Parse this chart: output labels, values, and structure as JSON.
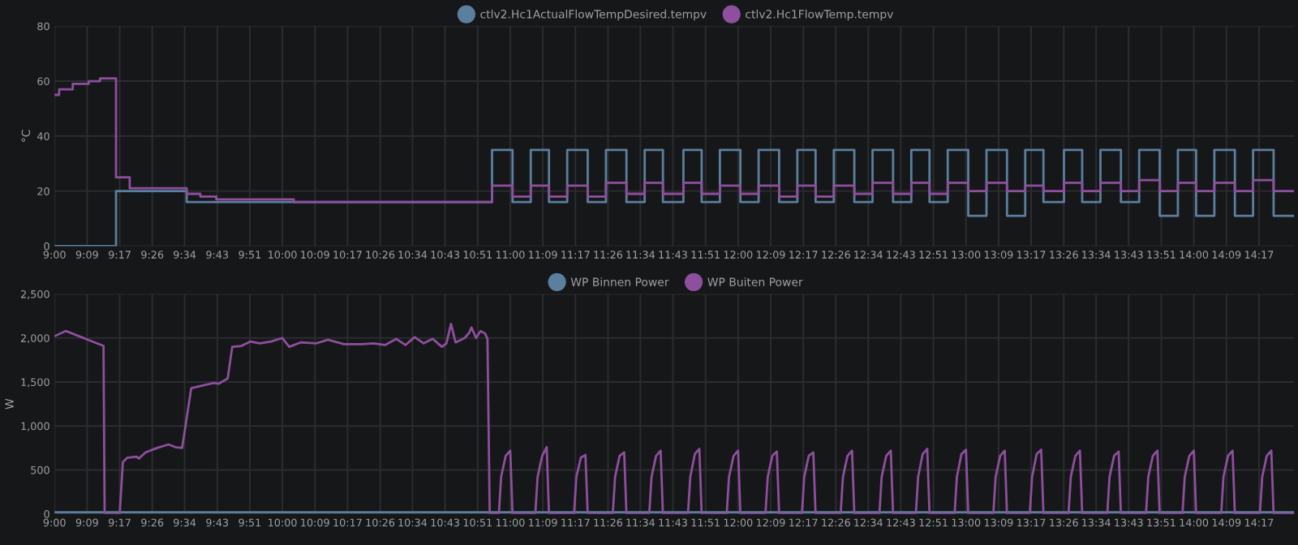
{
  "chart_data": [
    {
      "type": "step",
      "ylabel": "°C",
      "ylim": [
        0,
        80
      ],
      "yticks": [
        0,
        20,
        40,
        60,
        80
      ],
      "xlim": [
        9,
        14.44
      ],
      "xticks": [
        {
          "value": 9,
          "label": "9:00"
        },
        {
          "value": 9.143,
          "label": "9:09"
        },
        {
          "value": 9.286,
          "label": "9:17"
        },
        {
          "value": 9.429,
          "label": "9:26"
        },
        {
          "value": 9.571,
          "label": "9:34"
        },
        {
          "value": 9.714,
          "label": "9:43"
        },
        {
          "value": 9.857,
          "label": "9:51"
        },
        {
          "value": 10,
          "label": "10:00"
        },
        {
          "value": 10.143,
          "label": "10:09"
        },
        {
          "value": 10.286,
          "label": "10:17"
        },
        {
          "value": 10.429,
          "label": "10:26"
        },
        {
          "value": 10.571,
          "label": "10:34"
        },
        {
          "value": 10.714,
          "label": "10:43"
        },
        {
          "value": 10.857,
          "label": "10:51"
        },
        {
          "value": 11,
          "label": "11:00"
        },
        {
          "value": 11.143,
          "label": "11:09"
        },
        {
          "value": 11.286,
          "label": "11:17"
        },
        {
          "value": 11.429,
          "label": "11:26"
        },
        {
          "value": 11.571,
          "label": "11:34"
        },
        {
          "value": 11.714,
          "label": "11:43"
        },
        {
          "value": 11.857,
          "label": "11:51"
        },
        {
          "value": 12,
          "label": "12:00"
        },
        {
          "value": 12.143,
          "label": "12:09"
        },
        {
          "value": 12.286,
          "label": "12:17"
        },
        {
          "value": 12.429,
          "label": "12:26"
        },
        {
          "value": 12.571,
          "label": "12:34"
        },
        {
          "value": 12.714,
          "label": "12:43"
        },
        {
          "value": 12.857,
          "label": "12:51"
        },
        {
          "value": 13,
          "label": "13:00"
        },
        {
          "value": 13.143,
          "label": "13:09"
        },
        {
          "value": 13.286,
          "label": "13:17"
        },
        {
          "value": 13.429,
          "label": "13:26"
        },
        {
          "value": 13.571,
          "label": "13:34"
        },
        {
          "value": 13.714,
          "label": "13:43"
        },
        {
          "value": 13.857,
          "label": "13:51"
        },
        {
          "value": 14,
          "label": "14:00"
        },
        {
          "value": 14.143,
          "label": "14:09"
        },
        {
          "value": 14.286,
          "label": "14:17"
        }
      ],
      "grid": true,
      "legend": "top",
      "series": [
        {
          "name": "ctlv2.Hc1ActualFlowTempDesired.tempv",
          "color": "#5b7f9f",
          "x": [
            9.0,
            9.27,
            9.58,
            10.92,
            11.01,
            11.09,
            11.17,
            11.25,
            11.34,
            11.42,
            11.51,
            11.59,
            11.67,
            11.76,
            11.84,
            11.92,
            12.01,
            12.09,
            12.18,
            12.26,
            12.34,
            12.42,
            12.51,
            12.59,
            12.68,
            12.76,
            12.84,
            12.92,
            13.01,
            13.09,
            13.18,
            13.26,
            13.34,
            13.43,
            13.51,
            13.59,
            13.68,
            13.76,
            13.85,
            13.93,
            14.01,
            14.09,
            14.18,
            14.26,
            14.35,
            14.44
          ],
          "values": [
            0,
            20,
            16,
            35,
            16,
            35,
            16,
            35,
            16,
            35,
            16,
            35,
            16,
            35,
            16,
            35,
            16,
            35,
            16,
            35,
            16,
            35,
            16,
            35,
            16,
            35,
            16,
            35,
            11,
            35,
            11,
            35,
            16,
            35,
            16,
            35,
            16,
            35,
            11,
            35,
            11,
            35,
            11,
            35,
            11,
            11
          ]
        },
        {
          "name": "ctlv2.Hc1FlowTemp.tempv",
          "color": "#8e4f9e",
          "x": [
            9.0,
            9.02,
            9.08,
            9.15,
            9.2,
            9.27,
            9.33,
            9.58,
            9.64,
            9.71,
            9.8,
            10.05,
            10.92,
            11.01,
            11.09,
            11.17,
            11.25,
            11.34,
            11.42,
            11.51,
            11.59,
            11.67,
            11.76,
            11.84,
            11.92,
            12.01,
            12.09,
            12.18,
            12.26,
            12.34,
            12.42,
            12.51,
            12.59,
            12.68,
            12.76,
            12.84,
            12.92,
            13.01,
            13.09,
            13.18,
            13.26,
            13.34,
            13.43,
            13.51,
            13.59,
            13.68,
            13.76,
            13.85,
            13.93,
            14.01,
            14.09,
            14.18,
            14.26,
            14.35,
            14.44
          ],
          "values": [
            55,
            57,
            59,
            60,
            61,
            25,
            21,
            19,
            18,
            17,
            17,
            16,
            22,
            18,
            22,
            18,
            22,
            18,
            23,
            19,
            23,
            19,
            23,
            19,
            22,
            19,
            22,
            18,
            22,
            18,
            22,
            19,
            23,
            19,
            23,
            19,
            23,
            20,
            23,
            20,
            22,
            20,
            23,
            20,
            23,
            20,
            24,
            20,
            23,
            20,
            23,
            20,
            24,
            20,
            20
          ]
        }
      ]
    },
    {
      "type": "line",
      "ylabel": "W",
      "ylim": [
        0,
        2500
      ],
      "yticks": [
        0,
        500,
        {
          "value": 1000,
          "label": "1,000"
        },
        {
          "value": 1500,
          "label": "1,500"
        },
        {
          "value": 2000,
          "label": "2,000"
        },
        {
          "value": 2500,
          "label": "2,500"
        }
      ],
      "xlim": [
        9,
        14.44
      ],
      "xticks": [
        {
          "value": 9,
          "label": "9:00"
        },
        {
          "value": 9.143,
          "label": "9:09"
        },
        {
          "value": 9.286,
          "label": "9:17"
        },
        {
          "value": 9.429,
          "label": "9:26"
        },
        {
          "value": 9.571,
          "label": "9:34"
        },
        {
          "value": 9.714,
          "label": "9:43"
        },
        {
          "value": 9.857,
          "label": "9:51"
        },
        {
          "value": 10,
          "label": "10:00"
        },
        {
          "value": 10.143,
          "label": "10:09"
        },
        {
          "value": 10.286,
          "label": "10:17"
        },
        {
          "value": 10.429,
          "label": "10:26"
        },
        {
          "value": 10.571,
          "label": "10:34"
        },
        {
          "value": 10.714,
          "label": "10:43"
        },
        {
          "value": 10.857,
          "label": "10:51"
        },
        {
          "value": 11,
          "label": "11:00"
        },
        {
          "value": 11.143,
          "label": "11:09"
        },
        {
          "value": 11.286,
          "label": "11:17"
        },
        {
          "value": 11.429,
          "label": "11:26"
        },
        {
          "value": 11.571,
          "label": "11:34"
        },
        {
          "value": 11.714,
          "label": "11:43"
        },
        {
          "value": 11.857,
          "label": "11:51"
        },
        {
          "value": 12,
          "label": "12:00"
        },
        {
          "value": 12.143,
          "label": "12:09"
        },
        {
          "value": 12.286,
          "label": "12:17"
        },
        {
          "value": 12.429,
          "label": "12:26"
        },
        {
          "value": 12.571,
          "label": "12:34"
        },
        {
          "value": 12.714,
          "label": "12:43"
        },
        {
          "value": 12.857,
          "label": "12:51"
        },
        {
          "value": 13,
          "label": "13:00"
        },
        {
          "value": 13.143,
          "label": "13:09"
        },
        {
          "value": 13.286,
          "label": "13:17"
        },
        {
          "value": 13.429,
          "label": "13:26"
        },
        {
          "value": 13.571,
          "label": "13:34"
        },
        {
          "value": 13.714,
          "label": "13:43"
        },
        {
          "value": 13.857,
          "label": "13:51"
        },
        {
          "value": 14,
          "label": "14:00"
        },
        {
          "value": 14.143,
          "label": "14:09"
        },
        {
          "value": 14.286,
          "label": "14:17"
        }
      ],
      "grid": true,
      "legend": "top",
      "series": [
        {
          "name": "WP Binnen Power",
          "color": "#5b7f9f",
          "x": [
            9.0,
            14.44
          ],
          "values": [
            20,
            20
          ]
        },
        {
          "name": "WP Buiten Power",
          "color": "#8e4f9e",
          "x": [
            9.0,
            9.05,
            9.215,
            9.22,
            9.286,
            9.3,
            9.32,
            9.36,
            9.37,
            9.4,
            9.45,
            9.5,
            9.53,
            9.56,
            9.6,
            9.65,
            9.7,
            9.72,
            9.76,
            9.78,
            9.82,
            9.86,
            9.9,
            9.95,
            10.0,
            10.03,
            10.08,
            10.15,
            10.2,
            10.27,
            10.35,
            10.4,
            10.45,
            10.5,
            10.54,
            10.58,
            10.62,
            10.66,
            10.7,
            10.72,
            10.74,
            10.76,
            10.8,
            10.82,
            10.83,
            10.85,
            10.87,
            10.89,
            10.9,
            10.91,
            10.95,
            10.96,
            10.98,
            11.0,
            11.01,
            11.11,
            11.12,
            11.14,
            11.16,
            11.17,
            11.28,
            11.29,
            11.31,
            11.33,
            11.34,
            11.45,
            11.46,
            11.48,
            11.5,
            11.51,
            11.61,
            11.62,
            11.64,
            11.66,
            11.67,
            11.78,
            11.79,
            11.81,
            11.83,
            11.84,
            11.95,
            11.96,
            11.98,
            12.0,
            12.01,
            12.12,
            12.13,
            12.15,
            12.17,
            12.18,
            12.28,
            12.29,
            12.31,
            12.33,
            12.34,
            12.45,
            12.46,
            12.48,
            12.5,
            12.51,
            12.62,
            12.63,
            12.65,
            12.67,
            12.68,
            12.78,
            12.79,
            12.81,
            12.83,
            12.84,
            12.95,
            12.96,
            12.98,
            13.0,
            13.01,
            13.12,
            13.13,
            13.15,
            13.17,
            13.18,
            13.28,
            13.29,
            13.31,
            13.33,
            13.34,
            13.45,
            13.46,
            13.48,
            13.5,
            13.51,
            13.62,
            13.63,
            13.65,
            13.67,
            13.68,
            13.79,
            13.8,
            13.82,
            13.84,
            13.85,
            13.95,
            13.96,
            13.98,
            14.0,
            14.01,
            14.12,
            14.13,
            14.15,
            14.17,
            14.18,
            14.29,
            14.3,
            14.32,
            14.34,
            14.35,
            14.44
          ],
          "values": [
            2020,
            2080,
            1910,
            0,
            0,
            590,
            640,
            650,
            630,
            700,
            750,
            790,
            760,
            750,
            1430,
            1460,
            1490,
            1480,
            1540,
            1900,
            1910,
            1960,
            1940,
            1960,
            2000,
            1900,
            1950,
            1940,
            1980,
            1930,
            1930,
            1940,
            1920,
            1990,
            1920,
            2010,
            1940,
            1990,
            1900,
            1940,
            2160,
            1950,
            2000,
            2060,
            2120,
            2000,
            2080,
            2050,
            1990,
            0,
            0,
            420,
            660,
            720,
            0,
            0,
            420,
            660,
            760,
            0,
            0,
            420,
            640,
            670,
            0,
            0,
            420,
            660,
            700,
            0,
            0,
            420,
            660,
            720,
            0,
            0,
            420,
            680,
            740,
            0,
            0,
            420,
            660,
            720,
            0,
            0,
            420,
            660,
            710,
            0,
            0,
            420,
            660,
            700,
            0,
            0,
            420,
            660,
            720,
            0,
            0,
            420,
            660,
            720,
            0,
            0,
            420,
            680,
            740,
            0,
            0,
            420,
            680,
            730,
            0,
            0,
            420,
            660,
            720,
            0,
            0,
            420,
            680,
            730,
            0,
            0,
            420,
            660,
            720,
            0,
            0,
            420,
            660,
            710,
            0,
            0,
            420,
            660,
            720,
            0,
            0,
            420,
            660,
            720,
            0,
            0,
            420,
            660,
            720,
            0,
            0,
            420,
            660,
            720,
            0,
            0
          ]
        }
      ]
    }
  ]
}
